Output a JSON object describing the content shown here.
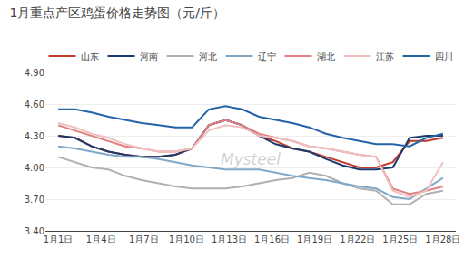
{
  "chart_data": {
    "type": "line",
    "title": "1月重点产区鸡蛋价格走势图（元/斤）",
    "x": [
      0,
      0.391304347826087,
      0.782608695652174,
      1.173913043478261,
      1.565217391304348,
      1.956521739130435,
      2.347826086956522,
      2.739130434782609,
      3.130434782608696,
      3.521739130434783,
      3.91304347826087,
      4.304347826086957,
      4.695652173913044,
      5.086956521739131,
      5.478260869565218,
      5.869565217391305,
      6.260869565217392,
      6.652173913043478,
      7.043478260869565,
      7.434782608695652,
      7.826086956521739,
      8.217391304347826,
      8.608695652173912,
      9
    ],
    "xlim": [
      -0.3,
      9.3
    ],
    "xticks": [
      {
        "value": 0,
        "label": "1月1日"
      },
      {
        "value": 1,
        "label": "1月4日"
      },
      {
        "value": 2,
        "label": "1月7日"
      },
      {
        "value": 3,
        "label": "1月10日"
      },
      {
        "value": 4,
        "label": "1月13日"
      },
      {
        "value": 5,
        "label": "1月16日"
      },
      {
        "value": 6,
        "label": "1月19日"
      },
      {
        "value": 7,
        "label": "1月22日"
      },
      {
        "value": 8,
        "label": "1月25日"
      },
      {
        "value": 9,
        "label": "1月28日"
      }
    ],
    "ylim": [
      3.4,
      4.9
    ],
    "yticks": [
      {
        "value": 3.4,
        "label": "3.40"
      },
      {
        "value": 3.7,
        "label": "3.70"
      },
      {
        "value": 4.0,
        "label": "4.00"
      },
      {
        "value": 4.3,
        "label": "4.30"
      },
      {
        "value": 4.6,
        "label": "4.60"
      },
      {
        "value": 4.9,
        "label": "4.90"
      }
    ],
    "grid": "y",
    "legend": "top",
    "annotations": [
      "Mysteel"
    ],
    "series": [
      {
        "name": "山东",
        "color": "#c0392b",
        "values": [
          4.3,
          4.28,
          4.2,
          4.15,
          4.12,
          4.1,
          4.1,
          4.12,
          4.18,
          4.4,
          4.45,
          4.4,
          4.3,
          4.25,
          4.18,
          4.15,
          4.1,
          4.05,
          4.0,
          4.0,
          4.05,
          4.25,
          4.25,
          4.28
        ]
      },
      {
        "name": "河南",
        "color": "#1a3a6e",
        "values": [
          4.3,
          4.28,
          4.2,
          4.15,
          4.12,
          4.1,
          4.1,
          4.12,
          4.18,
          4.4,
          4.45,
          4.4,
          4.3,
          4.22,
          4.18,
          4.15,
          4.08,
          4.02,
          3.98,
          3.98,
          4.0,
          4.28,
          4.3,
          4.3
        ]
      },
      {
        "name": "河北",
        "color": "#b0b0b0",
        "values": [
          4.1,
          4.05,
          4.0,
          3.98,
          3.92,
          3.88,
          3.85,
          3.82,
          3.8,
          3.8,
          3.8,
          3.82,
          3.85,
          3.88,
          3.9,
          3.95,
          3.92,
          3.85,
          3.8,
          3.78,
          3.65,
          3.65,
          3.75,
          3.78
        ]
      },
      {
        "name": "辽宁",
        "color": "#7fa8c9",
        "values": [
          4.2,
          4.18,
          4.15,
          4.12,
          4.1,
          4.1,
          4.08,
          4.05,
          4.02,
          4.0,
          3.98,
          3.98,
          3.98,
          3.95,
          3.92,
          3.9,
          3.88,
          3.85,
          3.82,
          3.8,
          3.72,
          3.7,
          3.8,
          3.9
        ]
      },
      {
        "name": "湖北",
        "color": "#e08080",
        "values": [
          4.4,
          4.35,
          4.3,
          4.25,
          4.2,
          4.18,
          4.15,
          4.15,
          4.18,
          4.4,
          4.45,
          4.4,
          4.32,
          4.28,
          4.25,
          4.2,
          4.18,
          4.15,
          4.12,
          4.1,
          3.8,
          3.75,
          3.78,
          3.82
        ]
      },
      {
        "name": "江苏",
        "color": "#f0c0c0",
        "values": [
          4.42,
          4.38,
          4.32,
          4.28,
          4.22,
          4.18,
          4.15,
          4.15,
          4.18,
          4.35,
          4.4,
          4.38,
          4.3,
          4.28,
          4.25,
          4.2,
          4.18,
          4.15,
          4.12,
          4.1,
          3.78,
          3.72,
          3.78,
          4.05
        ]
      },
      {
        "name": "四川",
        "color": "#2563a8",
        "values": [
          4.55,
          4.55,
          4.52,
          4.48,
          4.45,
          4.42,
          4.4,
          4.38,
          4.38,
          4.55,
          4.58,
          4.55,
          4.48,
          4.45,
          4.42,
          4.38,
          4.32,
          4.28,
          4.25,
          4.22,
          4.22,
          4.2,
          4.28,
          4.32
        ]
      }
    ]
  }
}
